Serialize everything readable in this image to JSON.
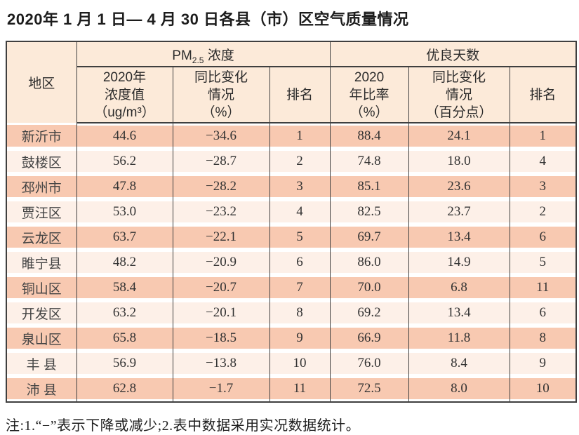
{
  "title": "2020年 1 月 1 日— 4 月 30 日各县（市）区空气质量情况",
  "table": {
    "header": {
      "region": "地区",
      "pm_group": {
        "base": "PM",
        "sub": "2.5",
        "rest": " 浓度"
      },
      "days_group": "优良天数",
      "pm_value_lines": [
        "2020年",
        "浓度值",
        "（ug/m³）"
      ],
      "pm_change_lines": [
        "同比变化",
        "情况",
        "（%）"
      ],
      "rank_pm": "排名",
      "ratio_lines": [
        "2020",
        "年比率",
        "（%）"
      ],
      "days_change_lines": [
        "同比变化",
        "情况",
        "（百分点）"
      ],
      "rank_days": "排名"
    },
    "rows": [
      {
        "region": "新沂市",
        "pm_value": "44.6",
        "pm_change": "−34.6",
        "pm_rank": "1",
        "days_ratio": "88.4",
        "days_change": "24.1",
        "days_rank": "1"
      },
      {
        "region": "鼓楼区",
        "pm_value": "56.2",
        "pm_change": "−28.7",
        "pm_rank": "2",
        "days_ratio": "74.8",
        "days_change": "18.0",
        "days_rank": "4"
      },
      {
        "region": "邳州市",
        "pm_value": "47.8",
        "pm_change": "−28.2",
        "pm_rank": "3",
        "days_ratio": "85.1",
        "days_change": "23.6",
        "days_rank": "3"
      },
      {
        "region": "贾汪区",
        "pm_value": "53.0",
        "pm_change": "−23.2",
        "pm_rank": "4",
        "days_ratio": "82.5",
        "days_change": "23.7",
        "days_rank": "2"
      },
      {
        "region": "云龙区",
        "pm_value": "63.7",
        "pm_change": "−22.1",
        "pm_rank": "5",
        "days_ratio": "69.7",
        "days_change": "13.4",
        "days_rank": "6"
      },
      {
        "region": "睢宁县",
        "pm_value": "48.2",
        "pm_change": "−20.9",
        "pm_rank": "6",
        "days_ratio": "86.0",
        "days_change": "14.9",
        "days_rank": "5"
      },
      {
        "region": "铜山区",
        "pm_value": "58.4",
        "pm_change": "−20.7",
        "pm_rank": "7",
        "days_ratio": "70.0",
        "days_change": "6.8",
        "days_rank": "11"
      },
      {
        "region": "开发区",
        "pm_value": "63.2",
        "pm_change": "−20.1",
        "pm_rank": "8",
        "days_ratio": "69.2",
        "days_change": "13.4",
        "days_rank": "6"
      },
      {
        "region": "泉山区",
        "pm_value": "65.8",
        "pm_change": "−18.5",
        "pm_rank": "9",
        "days_ratio": "66.9",
        "days_change": "11.8",
        "days_rank": "8"
      },
      {
        "region": "丰 县",
        "pm_value": "56.9",
        "pm_change": "−13.8",
        "pm_rank": "10",
        "days_ratio": "76.0",
        "days_change": "8.4",
        "days_rank": "9"
      },
      {
        "region": "沛 县",
        "pm_value": "62.8",
        "pm_change": "−1.7",
        "pm_rank": "11",
        "days_ratio": "72.5",
        "days_change": "8.0",
        "days_rank": "10"
      }
    ]
  },
  "note": "注:1.“−”表示下降或减少;2.表中数据采用实况数据统计。",
  "colors": {
    "band_strong": "#f8c9b1",
    "band_light": "#fdf0e8",
    "header_bg": "#fcead9",
    "border": "#3f3f3f"
  }
}
